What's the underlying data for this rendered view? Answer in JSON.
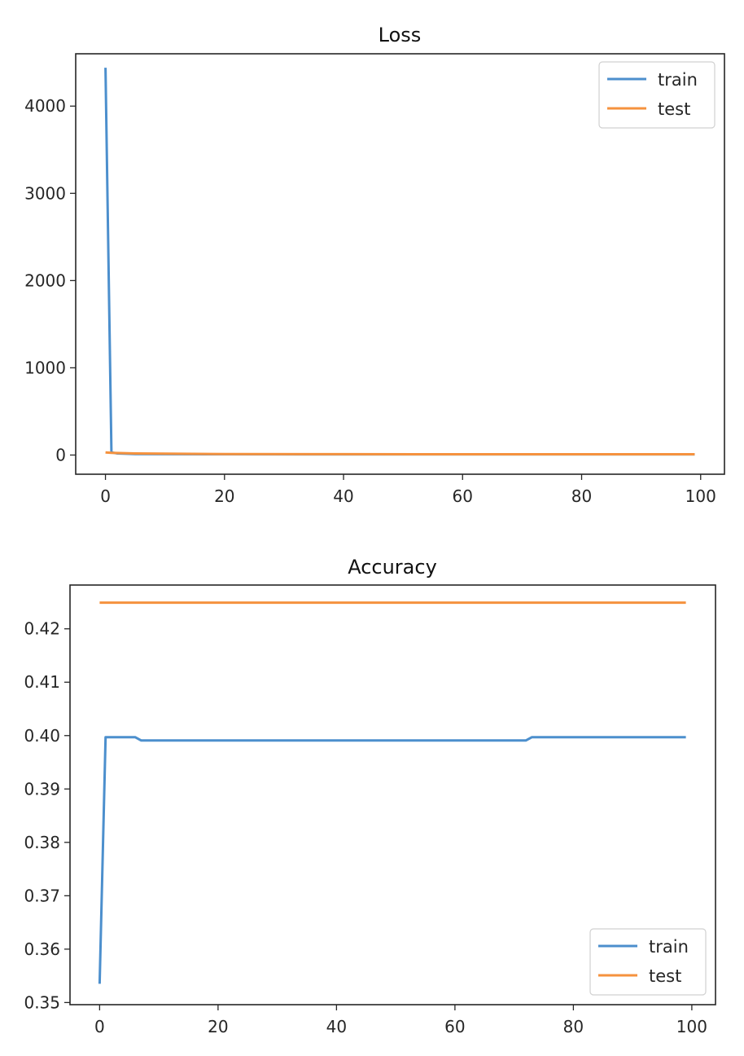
{
  "colors": {
    "train": "#4c8fcd",
    "test": "#f5923e",
    "axis": "#262626"
  },
  "chart_data": [
    {
      "type": "line",
      "title": "Loss",
      "xlabel": "",
      "ylabel": "",
      "xlim": [
        -5,
        104
      ],
      "ylim": [
        -220,
        4600
      ],
      "xticks": [
        0,
        20,
        40,
        60,
        80,
        100
      ],
      "yticks": [
        0,
        1000,
        2000,
        3000,
        4000
      ],
      "legend": "top-right",
      "grid": false,
      "series": [
        {
          "name": "train",
          "color": "#4c8fcd",
          "points": [
            [
              0,
              4440
            ],
            [
              1,
              30
            ],
            [
              2,
              18
            ],
            [
              5,
              12
            ],
            [
              10,
              10
            ],
            [
              20,
              9
            ],
            [
              40,
              8
            ],
            [
              60,
              8
            ],
            [
              80,
              8
            ],
            [
              99,
              8
            ]
          ]
        },
        {
          "name": "test",
          "color": "#f5923e",
          "points": [
            [
              0,
              30
            ],
            [
              1,
              25
            ],
            [
              5,
              18
            ],
            [
              10,
              15
            ],
            [
              20,
              12
            ],
            [
              40,
              10
            ],
            [
              60,
              9
            ],
            [
              80,
              9
            ],
            [
              99,
              9
            ]
          ]
        }
      ]
    },
    {
      "type": "line",
      "title": "Accuracy",
      "xlabel": "",
      "ylabel": "",
      "xlim": [
        -5,
        104
      ],
      "ylim": [
        0.3496,
        0.4282
      ],
      "xticks": [
        0,
        20,
        40,
        60,
        80,
        100
      ],
      "yticks": [
        0.35,
        0.36,
        0.37,
        0.38,
        0.39,
        0.4,
        0.41,
        0.42
      ],
      "legend": "bottom-right",
      "grid": false,
      "series": [
        {
          "name": "train",
          "color": "#4c8fcd",
          "points": [
            [
              0,
              0.3535
            ],
            [
              1,
              0.3997
            ],
            [
              6,
              0.3997
            ],
            [
              7,
              0.3991
            ],
            [
              72,
              0.3991
            ],
            [
              73,
              0.3997
            ],
            [
              99,
              0.3997
            ]
          ]
        },
        {
          "name": "test",
          "color": "#f5923e",
          "points": [
            [
              0,
              0.4249
            ],
            [
              99,
              0.4249
            ]
          ]
        }
      ]
    }
  ]
}
